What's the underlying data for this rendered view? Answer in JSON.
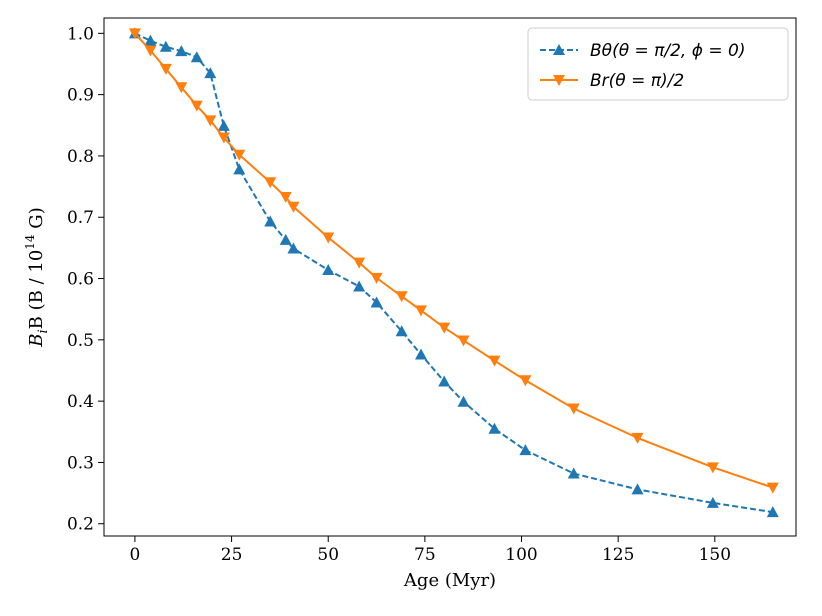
{
  "chart_data": {
    "type": "line",
    "title": "",
    "xlabel": "Age (Myr)",
    "ylabel_text": "B (B / 10",
    "ylabel_var": "B",
    "ylabel_sub": "i",
    "ylabel_exp": "14",
    "ylabel_unit": "G)",
    "xlim": [
      -8,
      171
    ],
    "ylim": [
      0.18,
      1.025
    ],
    "xticks": [
      0,
      25,
      50,
      75,
      100,
      125,
      150
    ],
    "xtick_labels": [
      "0",
      "25",
      "50",
      "75",
      "100",
      "125",
      "150"
    ],
    "yticks": [
      0.2,
      0.3,
      0.4,
      0.5,
      0.6,
      0.7,
      0.8,
      0.9,
      1.0
    ],
    "ytick_labels": [
      "0.2",
      "0.3",
      "0.4",
      "0.5",
      "0.6",
      "0.7",
      "0.8",
      "0.9",
      "1.0"
    ],
    "legend_position": "top-right",
    "series": [
      {
        "name": "B_θ(θ = π/2, φ = 0)",
        "legend_label": "Bθ(θ = π/2, ϕ = 0)",
        "color": "#1f77b4",
        "line_style": "dashed",
        "marker": "triangle-up",
        "x": [
          0,
          4,
          8,
          12,
          16,
          19.5,
          23,
          27,
          35,
          39,
          41,
          50,
          58,
          62.5,
          69,
          74,
          80,
          85,
          93,
          101,
          113.5,
          130,
          149.5,
          165
        ],
        "y": [
          1.0,
          0.988,
          0.978,
          0.971,
          0.961,
          0.935,
          0.849,
          0.778,
          0.693,
          0.663,
          0.649,
          0.614,
          0.587,
          0.561,
          0.514,
          0.476,
          0.432,
          0.399,
          0.355,
          0.32,
          0.282,
          0.256,
          0.234,
          0.219
        ]
      },
      {
        "name": "B_r(θ = π)/2",
        "legend_label": "Br(θ = π)/2",
        "color": "#ff7f0e",
        "line_style": "solid",
        "marker": "triangle-down",
        "x": [
          0,
          4,
          8,
          12,
          16,
          19.5,
          23,
          27,
          35,
          39,
          41,
          50,
          58,
          62.5,
          69,
          74,
          80,
          85,
          93,
          101,
          113.5,
          130,
          149.5,
          165
        ],
        "y": [
          1.0,
          0.972,
          0.942,
          0.912,
          0.882,
          0.858,
          0.83,
          0.802,
          0.757,
          0.733,
          0.717,
          0.667,
          0.626,
          0.601,
          0.571,
          0.548,
          0.52,
          0.499,
          0.466,
          0.434,
          0.388,
          0.34,
          0.292,
          0.259
        ]
      }
    ]
  }
}
